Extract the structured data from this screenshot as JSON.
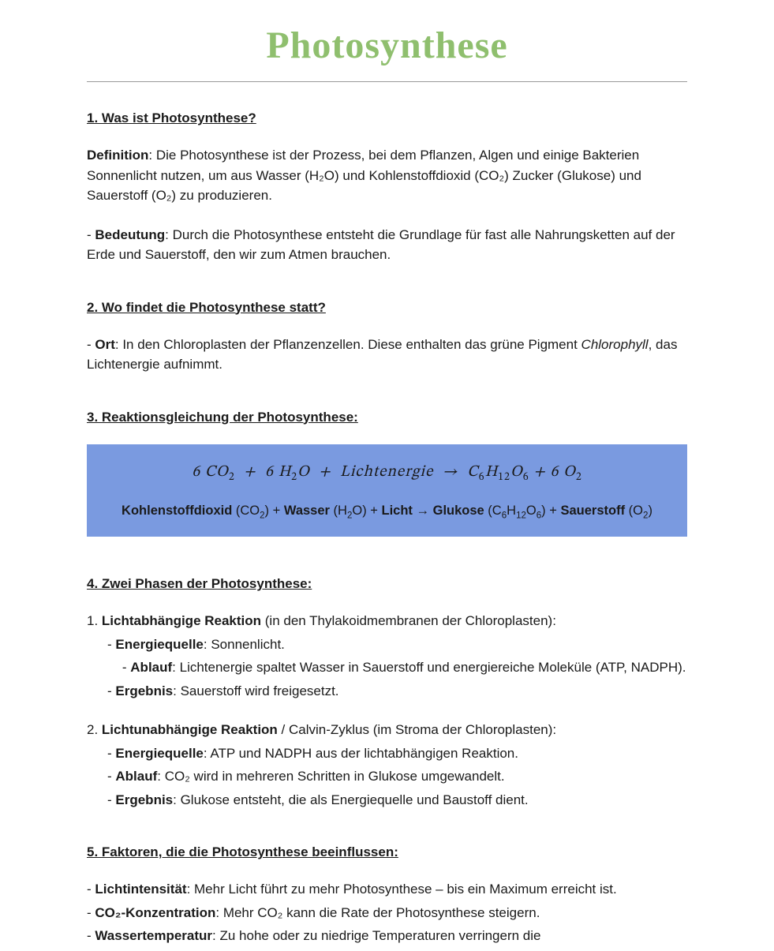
{
  "title": "Photosynthese",
  "colors": {
    "title": "#8fbf6e",
    "text": "#1a1a1a",
    "hr": "#999999",
    "equation_bg": "#7a9ae0",
    "page_bg": "#ffffff"
  },
  "fonts": {
    "title_family": "Brush Script MT, cursive",
    "title_size_pt": 36,
    "body_family": "Verdana, Geneva, sans-serif",
    "body_size_pt": 13,
    "heading_size_pt": 13
  },
  "sections": {
    "s1": {
      "heading": "1. Was ist Photosynthese?",
      "def_label": "Definition",
      "def_text": ": Die Photosynthese ist der Prozess, bei dem Pflanzen, Algen und einige Bakterien Sonnenlicht nutzen, um aus Wasser (H₂O) und Kohlenstoffdioxid (CO₂) Zucker (Glukose) und Sauerstoff (O₂) zu produzieren.",
      "bedeutung_label": "Bedeutung",
      "bedeutung_text": ": Durch die Photosynthese entsteht die Grundlage für fast alle Nahrungsketten auf der Erde und Sauerstoff, den wir zum Atmen brauchen."
    },
    "s2": {
      "heading": "2. Wo findet die Photosynthese statt?",
      "ort_label": "Ort",
      "ort_text1": ": In den Chloroplasten der Pflanzenzellen. Diese enthalten das grüne Pigment ",
      "chlorophyll": "Chlorophyll",
      "ort_text2": ", das Lichtenergie aufnimmt."
    },
    "s3": {
      "heading": "3. Reaktionsgleichung der Photosynthese:",
      "equation_math_html": "6 <i>CO</i><sub>2</sub>&nbsp;&nbsp;+&nbsp;&nbsp;6 <i>H</i><sub>2</sub><i>O</i>&nbsp;&nbsp;+&nbsp;&nbsp;<i>Lichtenergie</i>&nbsp;&nbsp;→&nbsp;&nbsp;<i>C</i><sub>6</sub><i>H</i><sub>12</sub><i>O</i><sub>6</sub> + 6 <i>O</i><sub>2</sub>",
      "equation_words_html": "<b>Kohlenstoffdioxid</b> (CO<sub>2</sub>) + <b>Wasser</b> (H<sub>2</sub>O) + <b>Licht</b> → <b>Glukose</b> (C<sub>6</sub>H<sub>12</sub>O<sub>6</sub>) + <b>Sauerstoff</b> (O<sub>2</sub>)"
    },
    "s4": {
      "heading": "4. Zwei Phasen der Photosynthese:",
      "p1_num": "1. ",
      "p1_title": "Lichtabhängige Reaktion",
      "p1_loc": " (in den Thylakoidmembranen der Chloroplasten):",
      "p1_a_lbl": "Energiequelle",
      "p1_a_txt": ": Sonnenlicht.",
      "p1_b_lbl": "Ablauf",
      "p1_b_txt": ": Lichtenergie spaltet Wasser in Sauerstoff und energiereiche Moleküle (ATP, NADPH).",
      "p1_c_lbl": "Ergebnis",
      "p1_c_txt": ": Sauerstoff wird freigesetzt.",
      "p2_num": "2. ",
      "p2_title": "Lichtunabhängige Reaktion",
      "p2_loc": " / Calvin-Zyklus (im Stroma der Chloroplasten):",
      "p2_a_lbl": "Energiequelle",
      "p2_a_txt": ": ATP und NADPH aus der lichtabhängigen Reaktion.",
      "p2_b_lbl": "Ablauf",
      "p2_b_txt": ": CO₂ wird in mehreren Schritten in Glukose umgewandelt.",
      "p2_c_lbl": "Ergebnis",
      "p2_c_txt": ": Glukose entsteht, die als Energiequelle und Baustoff dient."
    },
    "s5": {
      "heading": "5. Faktoren, die die Photosynthese beeinflussen:",
      "f1_lbl": "Lichtintensität",
      "f1_txt": ": Mehr Licht führt zu mehr Photosynthese – bis ein Maximum erreicht ist.",
      "f2_lbl": "CO₂-Konzentration",
      "f2_txt": ": Mehr CO₂ kann die Rate der Photosynthese steigern.",
      "f3_lbl": "Wassertemperatur",
      "f3_txt": ": Zu hohe oder zu niedrige Temperaturen verringern die"
    }
  }
}
